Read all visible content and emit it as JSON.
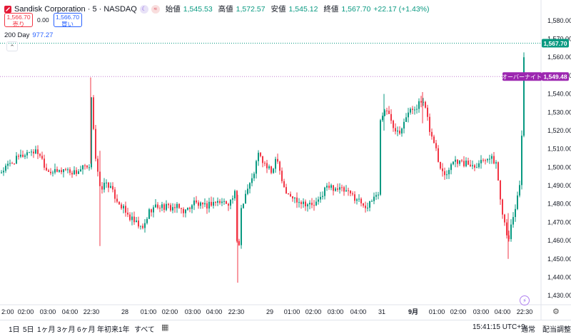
{
  "header": {
    "symbol": "Sandisk Corporation · 5 · NASDAQ",
    "ohlc": [
      {
        "key": "始値",
        "value": "1,545.53"
      },
      {
        "key": "高値",
        "value": "1,572.57"
      },
      {
        "key": "安値",
        "value": "1,545.12"
      },
      {
        "key": "終値",
        "value": "1,567.70"
      }
    ],
    "change": "+22.17 (+1.43%)",
    "sell_price": "1,566.70",
    "sell_label": "売り",
    "spread": "0.00",
    "buy_price": "1,566.70",
    "buy_label": "買い",
    "ma_label": "200 Day",
    "ma_value": "977.27",
    "collapse_icon": "chevron-up"
  },
  "chart_data": {
    "type": "candlestick",
    "y_range": [
      1425,
      1585
    ],
    "y_ticks": [
      1430,
      1440,
      1450,
      1460,
      1470,
      1480,
      1490,
      1500,
      1510,
      1520,
      1530,
      1540,
      1550,
      1560,
      1570,
      1580
    ],
    "x_tick_labels": [
      "2:00",
      "02:00",
      "03:00",
      "04:00",
      "22:30",
      "28",
      "01:00",
      "02:00",
      "03:00",
      "04:00",
      "22:30",
      "29",
      "01:00",
      "02:00",
      "03:00",
      "04:00",
      "31",
      "9月",
      "01:00",
      "02:00",
      "03:00",
      "04:00",
      "22:30"
    ],
    "last_price": "1,567.70",
    "last_price_value": 1567.7,
    "overnight_label": "オーバーナイト",
    "overnight_price": "1,549.48",
    "overnight_value": 1549.48,
    "up_color": "#089981",
    "down_color": "#f23645",
    "path": [
      [
        0,
        1497
      ],
      [
        18,
        1503
      ],
      [
        30,
        1506
      ],
      [
        42,
        1509
      ],
      [
        55,
        1508
      ],
      [
        65,
        1499
      ],
      [
        78,
        1497
      ],
      [
        90,
        1499
      ],
      [
        105,
        1497
      ],
      [
        118,
        1500
      ],
      [
        126,
        1498
      ],
      [
        127,
        1545
      ],
      [
        134,
        1505
      ],
      [
        140,
        1488
      ],
      [
        150,
        1492
      ],
      [
        158,
        1486
      ],
      [
        168,
        1480
      ],
      [
        178,
        1474
      ],
      [
        188,
        1470
      ],
      [
        200,
        1466
      ],
      [
        210,
        1477
      ],
      [
        222,
        1479
      ],
      [
        235,
        1478
      ],
      [
        248,
        1478
      ],
      [
        260,
        1476
      ],
      [
        272,
        1481
      ],
      [
        285,
        1478
      ],
      [
        298,
        1481
      ],
      [
        310,
        1481
      ],
      [
        322,
        1481
      ],
      [
        330,
        1486
      ],
      [
        333,
        1445
      ],
      [
        338,
        1478
      ],
      [
        345,
        1487
      ],
      [
        353,
        1493
      ],
      [
        362,
        1507
      ],
      [
        370,
        1502
      ],
      [
        380,
        1497
      ],
      [
        388,
        1507
      ],
      [
        395,
        1493
      ],
      [
        402,
        1485
      ],
      [
        412,
        1483
      ],
      [
        425,
        1481
      ],
      [
        438,
        1479
      ],
      [
        446,
        1481
      ],
      [
        456,
        1489
      ],
      [
        470,
        1489
      ],
      [
        482,
        1487
      ],
      [
        496,
        1484
      ],
      [
        506,
        1481
      ],
      [
        516,
        1478
      ],
      [
        524,
        1484
      ],
      [
        530,
        1486
      ],
      [
        533,
        1525
      ],
      [
        538,
        1532
      ],
      [
        546,
        1528
      ],
      [
        552,
        1522
      ],
      [
        560,
        1520
      ],
      [
        568,
        1528
      ],
      [
        576,
        1531
      ],
      [
        585,
        1534
      ],
      [
        592,
        1536
      ],
      [
        598,
        1528
      ],
      [
        604,
        1517
      ],
      [
        610,
        1512
      ],
      [
        614,
        1503
      ],
      [
        620,
        1499
      ],
      [
        626,
        1496
      ],
      [
        632,
        1503
      ],
      [
        640,
        1504
      ],
      [
        648,
        1502
      ],
      [
        656,
        1502
      ],
      [
        664,
        1501
      ],
      [
        672,
        1503
      ],
      [
        682,
        1506
      ],
      [
        690,
        1504
      ],
      [
        696,
        1502
      ],
      [
        700,
        1484
      ],
      [
        706,
        1472
      ],
      [
        712,
        1461
      ],
      [
        718,
        1470
      ],
      [
        724,
        1482
      ],
      [
        730,
        1495
      ],
      [
        733,
        1565
      ],
      [
        736,
        1567.7
      ]
    ]
  },
  "bottom": {
    "ranges": [
      "1日",
      "5日",
      "1ヶ月",
      "3ヶ月",
      "6ヶ月",
      "年初来",
      "1年",
      "すべて"
    ],
    "calendar_icon": "calendar-icon",
    "time": "15:41:15 UTC+9",
    "session": "通常",
    "adjust": "配当調整"
  }
}
